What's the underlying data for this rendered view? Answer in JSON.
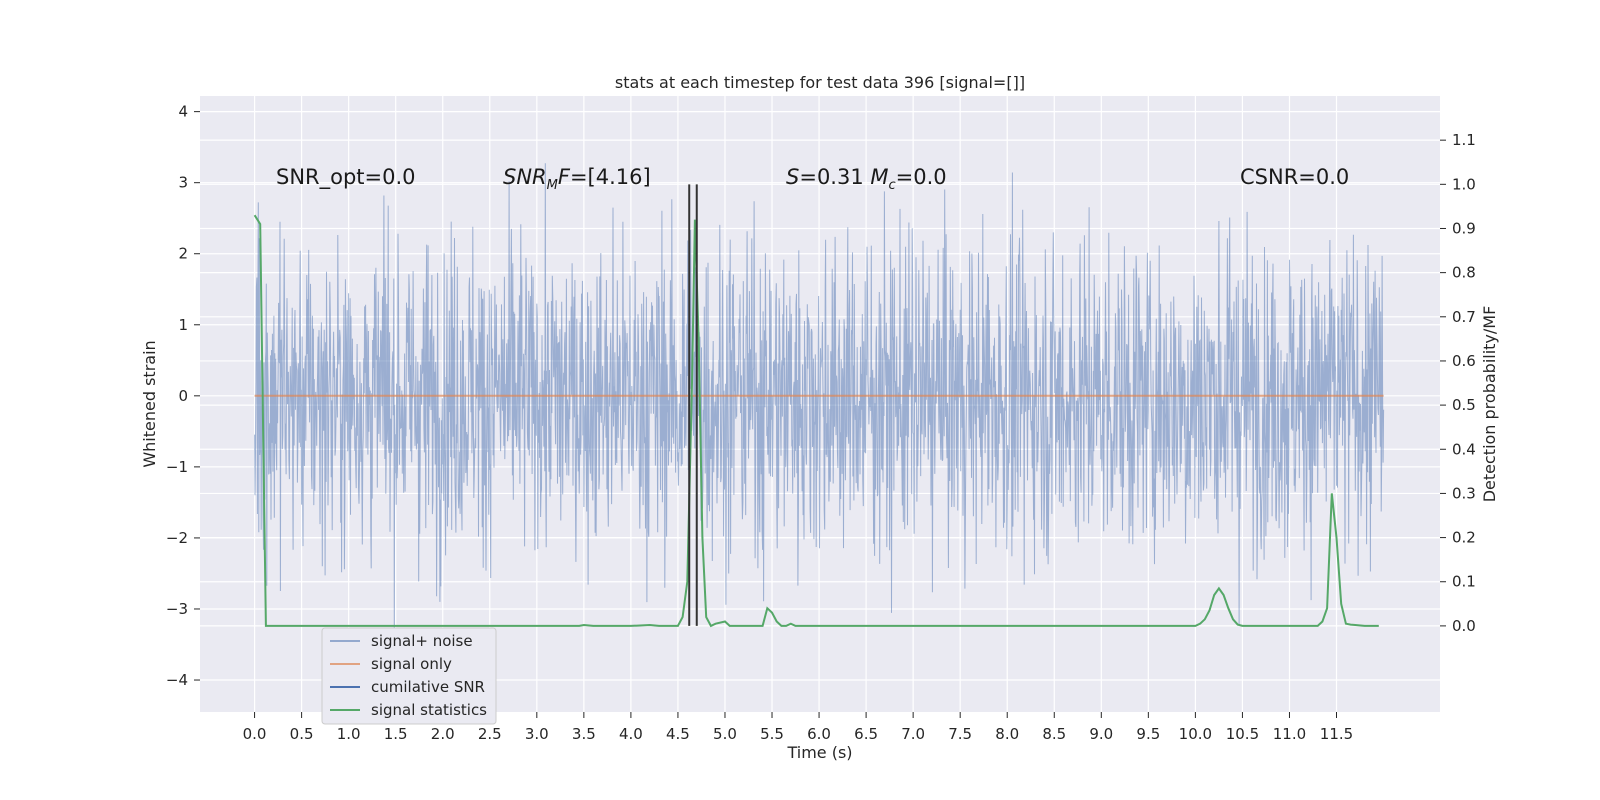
{
  "chart_data": {
    "type": "line",
    "title": "stats at each timestep for test data 396 [signal=[]]",
    "xlabel": "Time (s)",
    "ylabel": "Whitened strain",
    "y2label": "Detection probability/MF",
    "xlim": [
      -0.58,
      12.6
    ],
    "ylim": [
      -4.45,
      4.22
    ],
    "y2lim": [
      -0.195,
      1.2
    ],
    "x_ticks": [
      0.0,
      0.5,
      1.0,
      1.5,
      2.0,
      2.5,
      3.0,
      3.5,
      4.0,
      4.5,
      5.0,
      5.5,
      6.0,
      6.5,
      7.0,
      7.5,
      8.0,
      8.5,
      9.0,
      9.5,
      10.0,
      10.5,
      11.0,
      11.5
    ],
    "x_tick_labels": [
      "0.0",
      "0.5",
      "1.0",
      "1.5",
      "2.0",
      "2.5",
      "3.0",
      "3.5",
      "4.0",
      "4.5",
      "5.0",
      "5.5",
      "6.0",
      "6.5",
      "7.0",
      "7.5",
      "8.0",
      "8.5",
      "9.0",
      "9.5",
      "10.0",
      "10.5",
      "11.0",
      "11.5"
    ],
    "y_ticks": [
      -4,
      -3,
      -2,
      -1,
      0,
      1,
      2,
      3,
      4
    ],
    "y_tick_labels": [
      "−4",
      "−3",
      "−2",
      "−1",
      "0",
      "1",
      "2",
      "3",
      "4"
    ],
    "y2_ticks": [
      0.0,
      0.1,
      0.2,
      0.3,
      0.4,
      0.5,
      0.6,
      0.7,
      0.8,
      0.9,
      1.0,
      1.1
    ],
    "y2_tick_labels": [
      "0.0",
      "0.1",
      "0.2",
      "0.3",
      "0.4",
      "0.5",
      "0.6",
      "0.7",
      "0.8",
      "0.9",
      "1.0",
      "1.1"
    ],
    "grid": true,
    "legend_position": "lower-left",
    "series": [
      {
        "name": "signal+ noise",
        "color": "#4c72b0",
        "axis": "left",
        "kind": "noise",
        "x_range": [
          0.0,
          12.0
        ],
        "typical_range": [
          -2.4,
          2.4
        ],
        "extremes": [
          -4.1,
          3.85
        ]
      },
      {
        "name": "signal only",
        "color": "#dd8452",
        "axis": "left",
        "kind": "line",
        "x": [
          0.0,
          12.0
        ],
        "y": [
          0.0,
          0.0
        ]
      },
      {
        "name": "cumilative SNR",
        "color": "#4c72b0",
        "axis": "right",
        "kind": "line",
        "x": [],
        "y": []
      },
      {
        "name": "signal statistics",
        "color": "#55a868",
        "axis": "right",
        "kind": "line",
        "x": [
          0.0,
          0.06,
          0.12,
          0.2,
          0.5,
          1.0,
          2.0,
          3.0,
          3.45,
          3.5,
          3.6,
          3.8,
          4.0,
          4.2,
          4.3,
          4.4,
          4.5,
          4.55,
          4.6,
          4.65,
          4.68,
          4.72,
          4.76,
          4.8,
          4.85,
          4.9,
          5.0,
          5.05,
          5.1,
          5.3,
          5.4,
          5.45,
          5.5,
          5.55,
          5.6,
          5.65,
          5.7,
          5.75,
          6.0,
          6.5,
          7.0,
          7.5,
          8.0,
          9.0,
          10.0,
          10.05,
          10.1,
          10.15,
          10.2,
          10.25,
          10.3,
          10.35,
          10.4,
          10.45,
          10.5,
          10.6,
          11.0,
          11.3,
          11.35,
          11.4,
          11.45,
          11.5,
          11.55,
          11.6,
          11.65,
          11.7,
          11.8,
          11.85,
          11.9,
          11.95
        ],
        "y": [
          0.93,
          0.91,
          0.0,
          0.0,
          0.0,
          0.0,
          0.0,
          0.0,
          0.0,
          0.002,
          0.0,
          0.0,
          0.0,
          0.002,
          0.0,
          0.0,
          0.0,
          0.02,
          0.1,
          0.55,
          0.92,
          0.65,
          0.2,
          0.02,
          0.0,
          0.005,
          0.01,
          0.0,
          0.0,
          0.0,
          0.0,
          0.04,
          0.03,
          0.01,
          0.0,
          0.0,
          0.005,
          0.0,
          0.0,
          0.0,
          0.0,
          0.0,
          0.0,
          0.0,
          0.0,
          0.005,
          0.015,
          0.035,
          0.07,
          0.085,
          0.07,
          0.04,
          0.015,
          0.003,
          0.0,
          0.0,
          0.0,
          0.0,
          0.01,
          0.04,
          0.3,
          0.2,
          0.05,
          0.005,
          0.003,
          0.002,
          0.0,
          0.0,
          0.0,
          0.0
        ]
      }
    ],
    "vertical_lines": [
      {
        "x": 4.62,
        "color": "#333333",
        "axis": "right",
        "from": 0.0,
        "to": 1.0
      },
      {
        "x": 4.7,
        "color": "#333333",
        "axis": "right",
        "from": 0.0,
        "to": 1.0
      }
    ],
    "annotations": [
      {
        "text": "SNR_opt=0.0",
        "x": 0.2,
        "y": 3.1
      },
      {
        "text": "SNR_MF=[4.16]",
        "x": 2.6,
        "y": 3.1
      },
      {
        "text": "S=0.31   M_c=0.0",
        "x": 5.6,
        "y": 3.1
      },
      {
        "text": "CSNR=0.0",
        "x": 10.4,
        "y": 3.1
      }
    ]
  }
}
